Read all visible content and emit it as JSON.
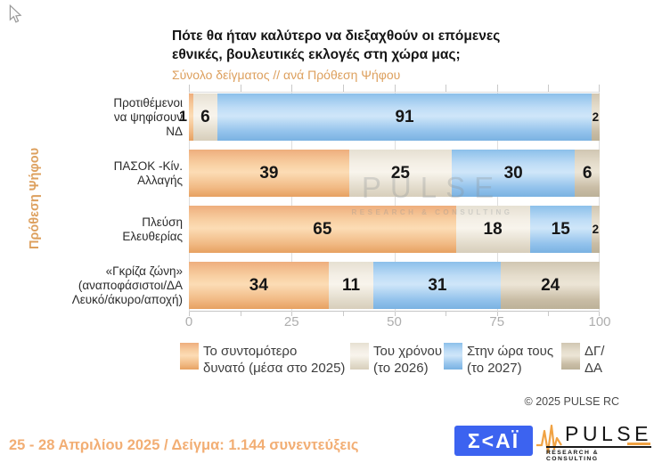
{
  "header": {
    "title": "Πότε θα ήταν καλύτερο να διεξαχθούν οι επόμενες\nεθνικές, βουλευτικές εκλογές στη χώρα μας;",
    "subtitle": "Σύνολο δείγματος // ανά Πρόθεση Ψήφου"
  },
  "axis": {
    "y_label": "Πρόθεση Ψήφου"
  },
  "chart_data": {
    "type": "bar",
    "orientation": "horizontal",
    "stacked": true,
    "title": "Πότε θα ήταν καλύτερο να διεξαχθούν οι επόμενες εθνικές, βουλευτικές εκλογές στη χώρα μας;",
    "subtitle": "Σύνολο δείγματος // ανά Πρόθεση Ψήφου",
    "ylabel": "Πρόθεση Ψήφου",
    "categories": [
      "Προτιθέμενοι να ψηφίσουν ΝΔ",
      "ΠΑΣΟΚ -Κίν. Αλλαγής",
      "Πλεύση Ελευθερίας",
      "«Γκρίζα ζώνη» (αναποφάσιστοι/ΔΑ Λευκό/άκυρο/αποχή)"
    ],
    "category_labels_display": [
      "Προτιθέμενοι\nνα ψηφίσουν\nΝΔ",
      "ΠΑΣΟΚ -Κίν.\nΑλλαγής",
      "Πλεύση\nΕλευθερίας",
      "«Γκρίζα ζώνη»\n(αναποφάσιστοι/ΔΑ\nΛευκό/άκυρο/αποχή)"
    ],
    "series": [
      {
        "name": "Το συντομότερο δυνατό (μέσα στο 2025)",
        "color": "#f3bc8c",
        "values": [
          1,
          39,
          65,
          34
        ]
      },
      {
        "name": "Του χρόνου (το 2026)",
        "color": "#efeadd",
        "values": [
          6,
          25,
          18,
          11
        ]
      },
      {
        "name": "Στην ώρα τους (το 2027)",
        "color": "#a3cdf1",
        "values": [
          91,
          30,
          15,
          31
        ]
      },
      {
        "name": "ΔΓ/ΔΑ",
        "color": "#d6ccb8",
        "values": [
          2,
          6,
          2,
          24
        ]
      }
    ],
    "xlim": [
      0,
      100
    ],
    "x_ticks": [
      0,
      25,
      50,
      75,
      100
    ],
    "minor_tick_step": 12.5,
    "grid": "vertical-major",
    "legend_position": "bottom"
  },
  "legend": {
    "items": [
      {
        "label": "Το συντομότερο\nδυνατό (μέσα στο 2025)"
      },
      {
        "label": "Του χρόνου\n(το 2026)"
      },
      {
        "label": "Στην ώρα τους\n(το 2027)"
      },
      {
        "label": "ΔΓ/\nΔΑ"
      }
    ]
  },
  "watermark": {
    "line1": "PULSE",
    "line2": "RESEARCH & CONSULTING"
  },
  "footer": {
    "copyright": "© 2025  PULSE RC",
    "fieldwork": "25 - 28 Απριλίου 2025  /  Δείγμα:  1.144 συνεντεύξεις",
    "skai_logo_text": "Σ<ΑΪ",
    "pulse_logo_text": "PULSE",
    "pulse_logo_sub": "RESEARCH & CONSULTING"
  },
  "colors": {
    "accent_orange": "#dda05e",
    "footer_orange": "#f2ae74",
    "skai_blue": "#3c63f0",
    "pulse_logo_orange": "#f0a243",
    "series": [
      "#f3bc8c",
      "#efeadd",
      "#a3cdf1",
      "#d6ccb8"
    ],
    "gridline": "#dedede",
    "tick_label": "#aeaeae"
  }
}
